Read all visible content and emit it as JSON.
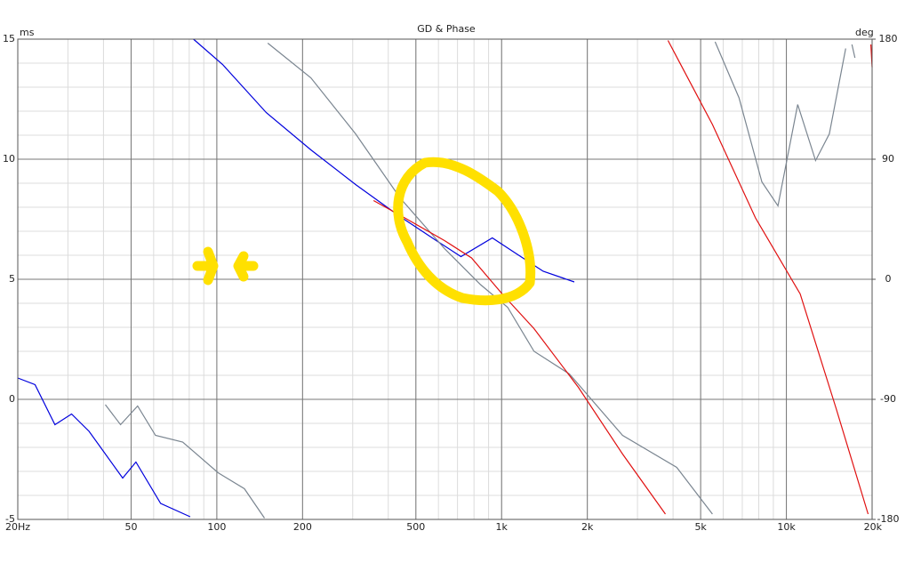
{
  "chart_data": {
    "type": "line",
    "title": "GD & Phase",
    "y_label": "ms",
    "y2_label": "deg",
    "log_x": true,
    "grid": true,
    "xlim": [
      20,
      20000
    ],
    "xticks": [
      {
        "value": 20,
        "label": "20Hz"
      },
      50,
      100,
      200,
      500,
      {
        "value": 1000,
        "label": "1k"
      },
      {
        "value": 2000,
        "label": "2k"
      },
      {
        "value": 5000,
        "label": "5k"
      },
      {
        "value": 10000,
        "label": "10k"
      },
      {
        "value": 20000,
        "label": "20k"
      }
    ],
    "ylim": [
      -5,
      15
    ],
    "yticks": [
      -5,
      0,
      5,
      10,
      15
    ],
    "y2lim": [
      -180,
      180
    ],
    "y2ticks": [
      -180,
      -90,
      0,
      90,
      180
    ],
    "series": [
      {
        "color": "#0000dd",
        "axis": "y2",
        "x": [
          20,
          23,
          27,
          30.9,
          35.6,
          46.7,
          52,
          63.5,
          80.6,
          null,
          82.8,
          104.8,
          149,
          214,
          307,
          440,
          590,
          720,
          928,
          1130,
          1400,
          1800
        ],
        "values": [
          -74,
          -79,
          -109,
          -101,
          -114,
          -149,
          -137,
          -168,
          -178,
          null,
          180,
          161,
          125,
          97,
          71,
          47,
          29,
          17,
          31,
          19,
          6,
          -2
        ]
      },
      {
        "color": "#7a8590",
        "axis": "y2",
        "x": [
          40.6,
          45.9,
          52.7,
          60.9,
          75.9,
          101,
          125,
          147,
          null,
          151,
          214,
          307,
          440,
          630,
          843,
          1050,
          1300,
          1730,
          2660,
          4120,
          5500,
          null,
          5620,
          6820,
          8200,
          9340,
          10960,
          12660,
          14150,
          16150,
          null,
          16990,
          17410
        ],
        "values": [
          -94,
          -109,
          -95,
          -117,
          -122,
          -145,
          -157,
          -179,
          null,
          177,
          151,
          109,
          61,
          23,
          -4,
          -21,
          -54,
          -71,
          -117,
          -141,
          -176,
          null,
          178,
          136,
          73,
          55,
          131,
          89,
          109,
          173,
          null,
          176,
          166
        ]
      },
      {
        "color": "#e01010",
        "axis": "y2",
        "x": [
          355,
          440,
          630,
          784,
          1005,
          1300,
          1860,
          2660,
          3760,
          null,
          3840,
          5500,
          7790,
          11180,
          14960,
          19370,
          null,
          19800,
          20000
        ],
        "values": [
          59,
          48,
          29,
          16,
          -11,
          -37,
          -81,
          -131,
          -176,
          null,
          179,
          116,
          46,
          -11,
          -97,
          -176,
          null,
          176,
          159
        ]
      }
    ]
  }
}
